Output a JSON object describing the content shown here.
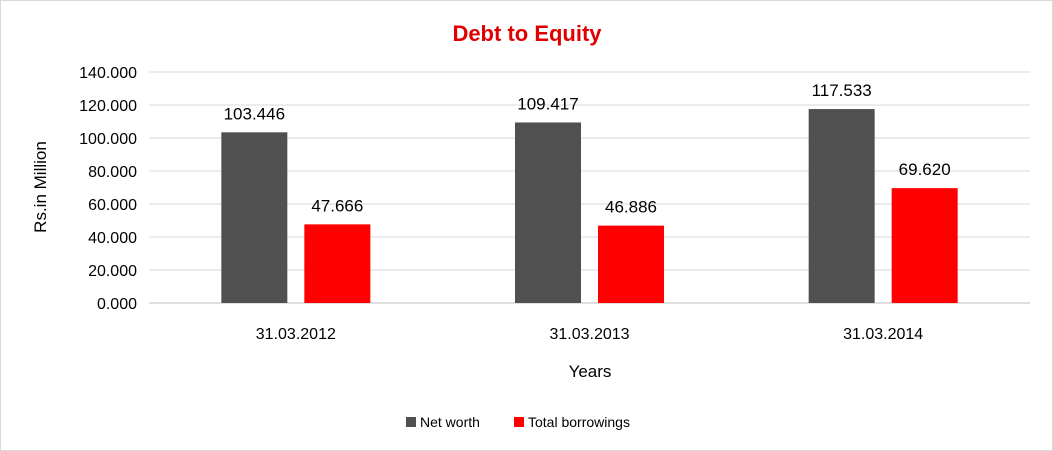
{
  "chart_data": {
    "type": "bar",
    "title": "Debt to Equity",
    "xlabel": "Years",
    "ylabel": "Rs.in Million",
    "categories": [
      "31.03.2012",
      "31.03.2013",
      "31.03.2014"
    ],
    "series": [
      {
        "name": "Net worth",
        "values": [
          103.446,
          109.417,
          117.533
        ],
        "labels": [
          "103.446",
          "109.417",
          "117.533"
        ],
        "color": "#505050"
      },
      {
        "name": "Total borrowings",
        "values": [
          47.666,
          46.886,
          69.62
        ],
        "labels": [
          "47.666",
          "46.886",
          "69.620"
        ],
        "color": "#ff0000"
      }
    ],
    "ylim": [
      0,
      140
    ],
    "yticks": [
      0,
      20,
      40,
      60,
      80,
      100,
      120,
      140
    ],
    "ytick_labels": [
      "0.000",
      "20.000",
      "40.000",
      "60.000",
      "80.000",
      "100.000",
      "120.000",
      "140.000"
    ],
    "grid": true,
    "legend_position": "bottom",
    "title_color": "#e00000"
  }
}
